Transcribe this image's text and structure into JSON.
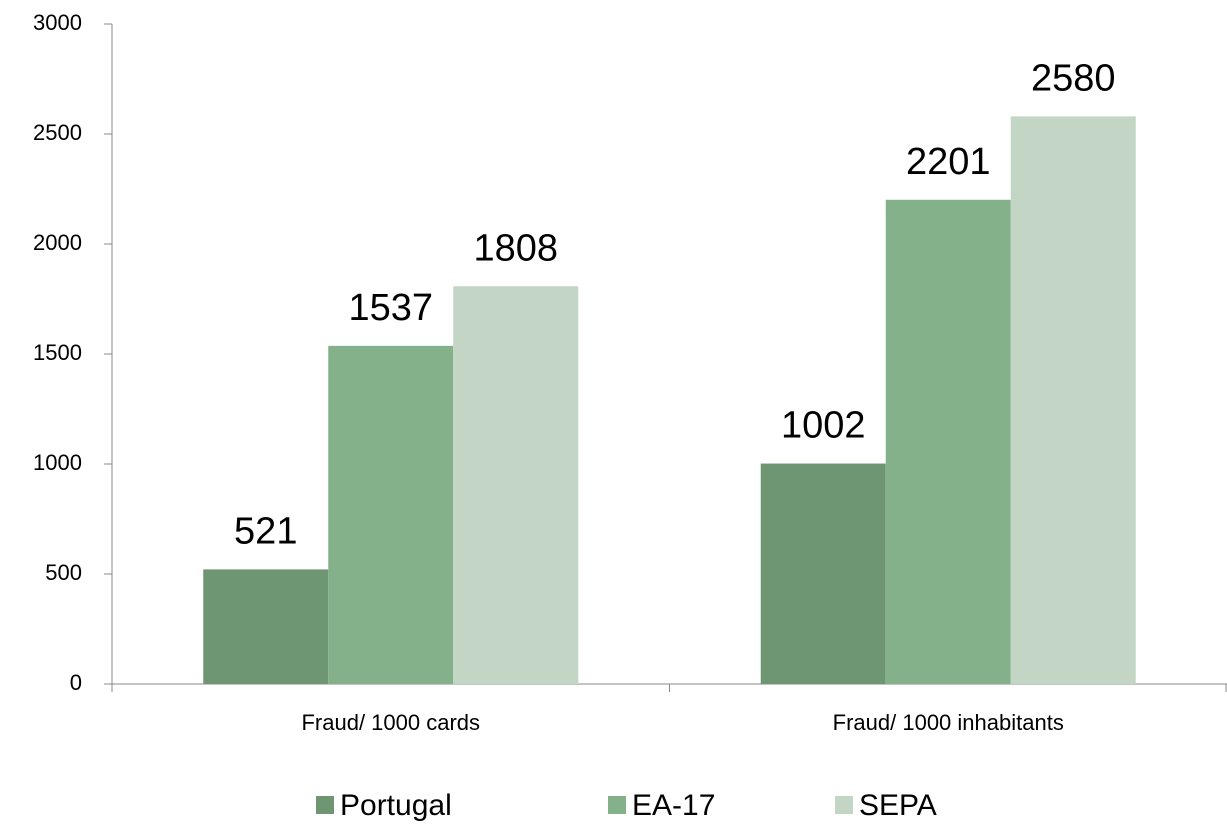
{
  "chart_data": {
    "type": "bar",
    "categories": [
      "Fraud/ 1000 cards",
      "Fraud/ 1000 inhabitants"
    ],
    "series": [
      {
        "name": "Portugal",
        "color": "#6e9672",
        "values": [
          521,
          1002
        ]
      },
      {
        "name": "EA-17",
        "color": "#84b08a",
        "values": [
          1537,
          2201
        ]
      },
      {
        "name": "SEPA",
        "color": "#c3d6c6",
        "values": [
          1808,
          2580
        ]
      }
    ],
    "ylim": [
      0,
      3000
    ],
    "yticks": [
      0,
      500,
      1000,
      1500,
      2000,
      2500,
      3000
    ],
    "legend": "bottom",
    "show_values": true
  }
}
